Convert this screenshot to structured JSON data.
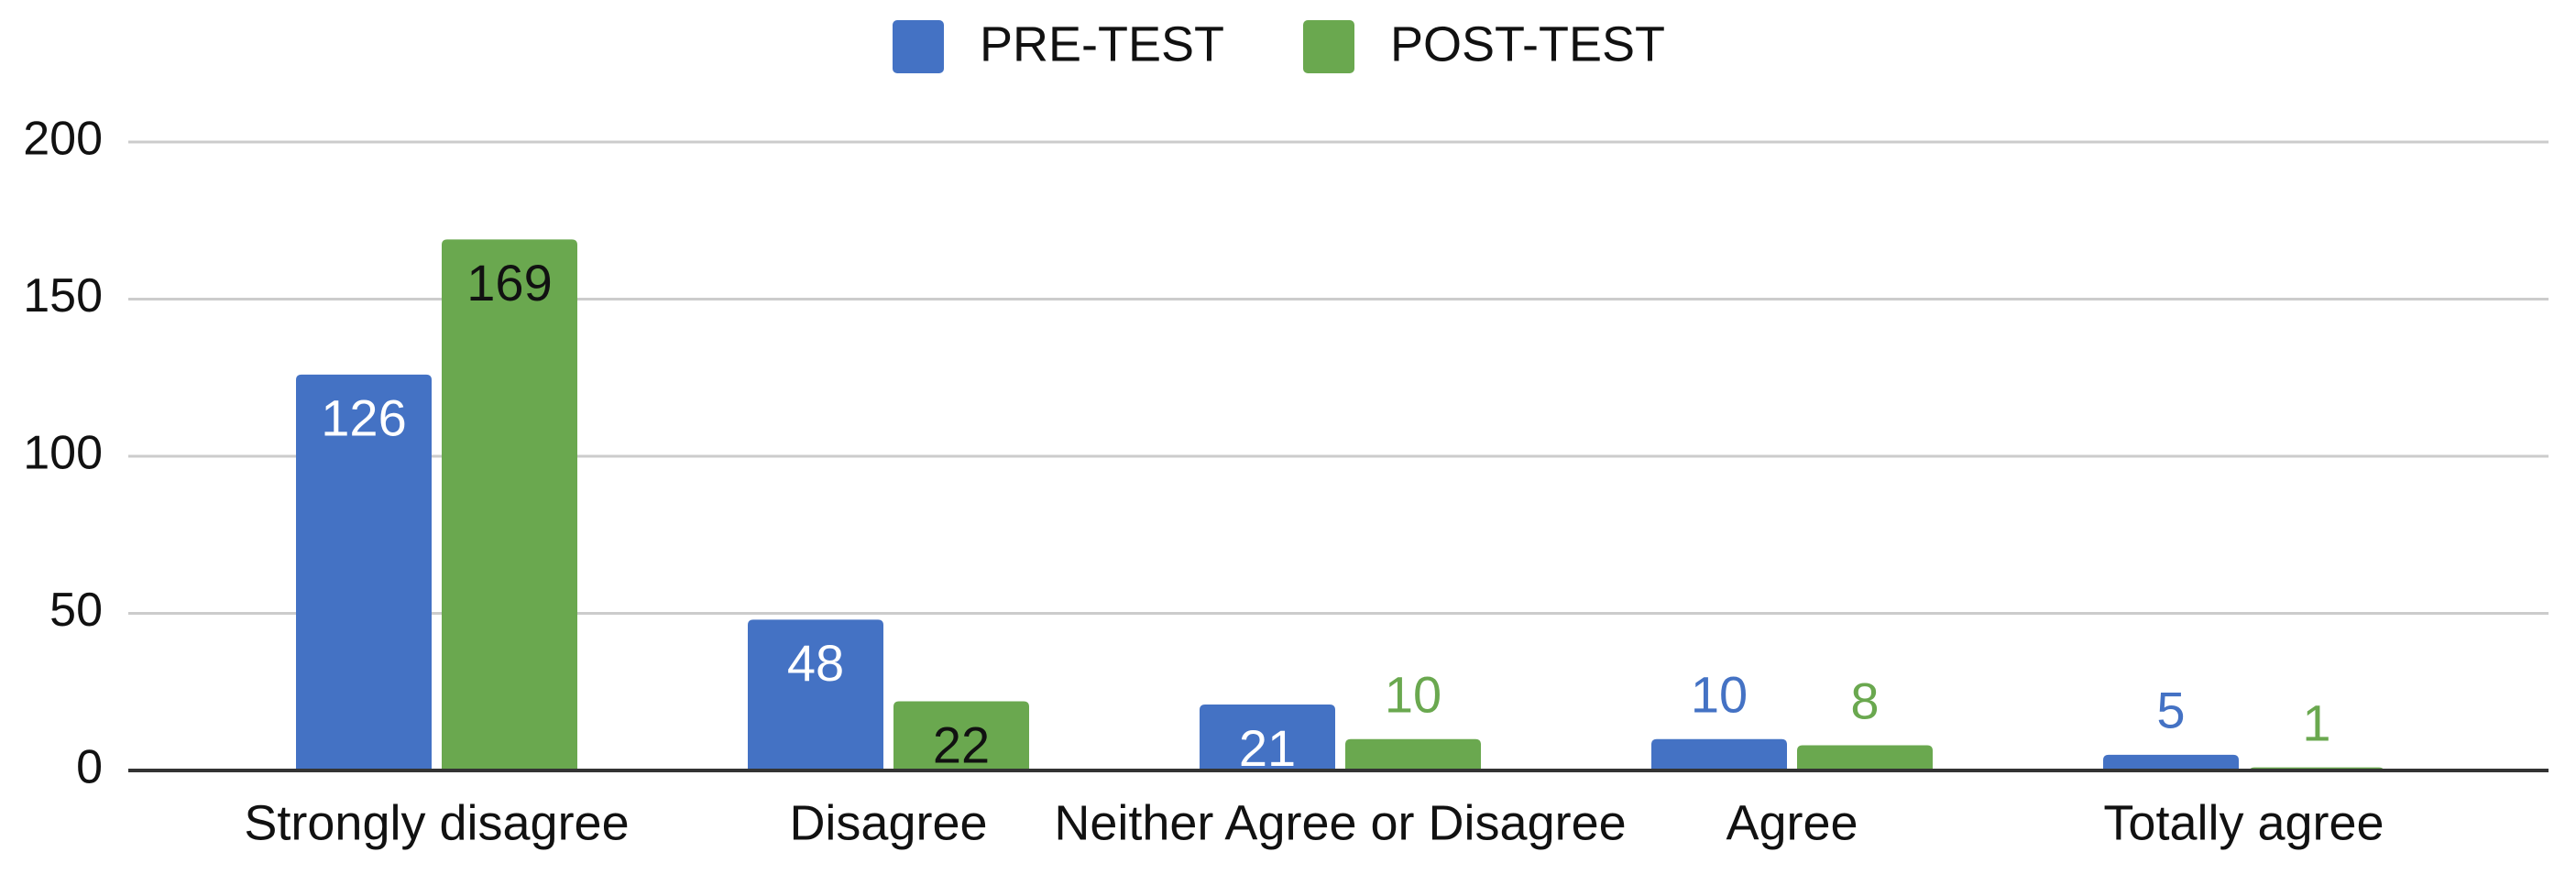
{
  "chart_data": {
    "type": "bar",
    "categories": [
      "Strongly disagree",
      "Disagree",
      "Neither Agree or Disagree",
      "Agree",
      "Totally agree"
    ],
    "series": [
      {
        "name": "PRE-TEST",
        "color": "#4472c4",
        "values": [
          126,
          48,
          21,
          10,
          5
        ]
      },
      {
        "name": "POST-TEST",
        "color": "#6aa84f",
        "values": [
          169,
          22,
          10,
          8,
          1
        ]
      }
    ],
    "ylim": [
      0,
      200
    ],
    "yticks": [
      0,
      50,
      100,
      150,
      200
    ],
    "grid": true,
    "legend": "top"
  }
}
